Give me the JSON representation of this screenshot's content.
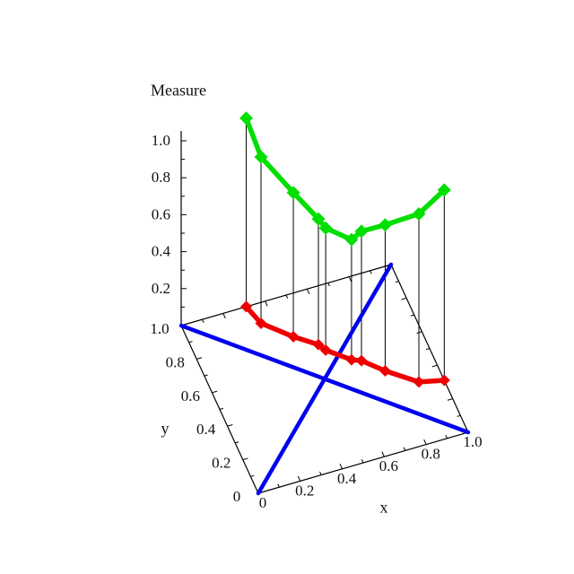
{
  "axes": {
    "z": {
      "label": "Measure",
      "tick_labels": [
        "0.2",
        "0.4",
        "0.6",
        "0.8",
        "1.0"
      ],
      "range": [
        0,
        1
      ]
    },
    "x": {
      "label": "x",
      "tick_labels": [
        "0",
        "0.2",
        "0.4",
        "0.6",
        "0.8",
        "1.0"
      ],
      "range": [
        0,
        1
      ]
    },
    "y": {
      "label": "y",
      "tick_labels": [
        "0",
        "0.2",
        "0.4",
        "0.6",
        "0.8",
        "1.0"
      ],
      "range": [
        0,
        1
      ]
    }
  },
  "colors": {
    "measure_curve": "#00DF00",
    "projection_curve": "#EE0000",
    "diagonals": "#0000EE",
    "axis": "#000000",
    "drop_lines": "#000000",
    "background": "#FFFFFF"
  },
  "chart_data": {
    "type": "line",
    "projection": "3d",
    "description": "3D plot of a measure over a curved path in the unit square; green curve is the measure surface line, red curve is its projection on the base plane, blue lines are the two diagonals of the unit square",
    "x_range": [
      0,
      1
    ],
    "y_range": [
      0,
      1
    ],
    "z_range": [
      0,
      1
    ],
    "grid": false,
    "drop_lines": {
      "from": "measure-curve",
      "to": "projection-curve",
      "color": "#000000",
      "width": 1
    },
    "series": [
      {
        "name": "diagonal-ascending",
        "color": "#0000EE",
        "marker": "none",
        "width": 4.5,
        "points": [
          [
            0,
            0,
            0
          ],
          [
            1,
            1,
            0
          ]
        ]
      },
      {
        "name": "diagonal-descending",
        "color": "#0000EE",
        "marker": "none",
        "width": 4.5,
        "points": [
          [
            0,
            1,
            0
          ],
          [
            1,
            0,
            0
          ]
        ]
      },
      {
        "name": "projection-curve",
        "color": "#EE0000",
        "marker": "diamond",
        "marker_size": 6.5,
        "width": 5.5,
        "points": [
          [
            0.31,
            1.0,
            0
          ],
          [
            0.34,
            0.89,
            0
          ],
          [
            0.45,
            0.77,
            0
          ],
          [
            0.54,
            0.69,
            0
          ],
          [
            0.56,
            0.65,
            0
          ],
          [
            0.65,
            0.56,
            0
          ],
          [
            0.69,
            0.54,
            0
          ],
          [
            0.77,
            0.45,
            0
          ],
          [
            0.89,
            0.34,
            0
          ],
          [
            1.0,
            0.31,
            0
          ]
        ]
      },
      {
        "name": "measure-curve",
        "color": "#00DF00",
        "marker": "diamond",
        "marker_size": 7.5,
        "width": 5.5,
        "points": [
          [
            0.31,
            1.0,
            1.02
          ],
          [
            0.34,
            0.89,
            0.9
          ],
          [
            0.45,
            0.77,
            0.78
          ],
          [
            0.54,
            0.69,
            0.68
          ],
          [
            0.56,
            0.65,
            0.66
          ],
          [
            0.65,
            0.56,
            0.65
          ],
          [
            0.69,
            0.54,
            0.7
          ],
          [
            0.77,
            0.45,
            0.79
          ],
          [
            0.89,
            0.34,
            0.91
          ],
          [
            1.0,
            0.31,
            1.03
          ]
        ]
      }
    ]
  }
}
